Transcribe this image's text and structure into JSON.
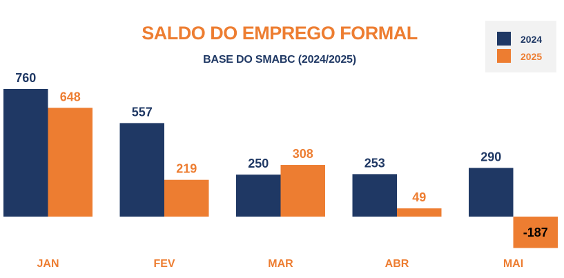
{
  "chart_data": {
    "type": "bar",
    "title": "SALDO DO EMPREGO FORMAL",
    "subtitle": "BASE DO SMABC (2024/2025)",
    "categories": [
      "JAN",
      "FEV",
      "MAR",
      "ABR",
      "MAI"
    ],
    "series": [
      {
        "name": "2024",
        "values": [
          760,
          557,
          250,
          253,
          290
        ],
        "color": "#1f3864"
      },
      {
        "name": "2025",
        "values": [
          648,
          219,
          308,
          49,
          -187
        ],
        "color": "#ed7d31"
      }
    ],
    "ylim": [
      -187,
      760
    ],
    "grid": false,
    "legend": "top-right",
    "colors": {
      "title": "#ed7d31",
      "subtitle": "#1f3864",
      "category_labels": "#ed7d31",
      "legend_background": "#f2f2f2",
      "negative_label_text": "#000000"
    }
  }
}
